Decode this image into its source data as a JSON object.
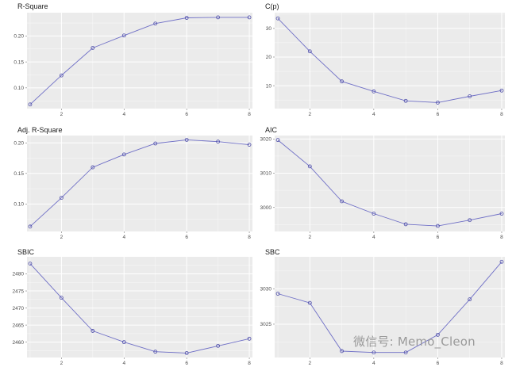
{
  "watermark": "微信号: Memo_Cleon",
  "colors": {
    "panel_bg": "#ebebeb",
    "grid": "#ffffff",
    "line": "#6f6fc6",
    "point": "#4a4aa6",
    "text": "#4d4d4d",
    "title": "#1a1a1a"
  },
  "chart_data": [
    {
      "type": "line",
      "title": "R-Square",
      "x": [
        1,
        2,
        3,
        4,
        5,
        6,
        7,
        8
      ],
      "values": [
        0.068,
        0.124,
        0.177,
        0.201,
        0.224,
        0.235,
        0.236,
        0.236
      ],
      "xlim": [
        0.9,
        8.1
      ],
      "ylim": [
        0.06,
        0.245
      ],
      "xticks": [
        2,
        4,
        6,
        8
      ],
      "yticks": [
        0.1,
        0.15,
        0.2
      ],
      "ytick_labels": [
        "0.10",
        "0.15",
        "0.20"
      ]
    },
    {
      "type": "line",
      "title": "C(p)",
      "x": [
        1,
        2,
        3,
        4,
        5,
        6,
        7,
        8
      ],
      "values": [
        33.5,
        22,
        11.5,
        8,
        4.7,
        4.1,
        6.3,
        8.3
      ],
      "xlim": [
        0.9,
        8.1
      ],
      "ylim": [
        2.0,
        35.5
      ],
      "xticks": [
        2,
        4,
        6,
        8
      ],
      "yticks": [
        10,
        20,
        30
      ],
      "ytick_labels": [
        "10",
        "20",
        "30"
      ]
    },
    {
      "type": "line",
      "title": "Adj. R-Square",
      "x": [
        1,
        2,
        3,
        4,
        5,
        6,
        7,
        8
      ],
      "values": [
        0.063,
        0.11,
        0.16,
        0.181,
        0.199,
        0.205,
        0.202,
        0.197
      ],
      "xlim": [
        0.9,
        8.1
      ],
      "ylim": [
        0.055,
        0.212
      ],
      "xticks": [
        2,
        4,
        6,
        8
      ],
      "yticks": [
        0.1,
        0.15,
        0.2
      ],
      "ytick_labels": [
        "0.10",
        "0.15",
        "0.20"
      ]
    },
    {
      "type": "line",
      "title": "AIC",
      "x": [
        1,
        2,
        3,
        4,
        5,
        6,
        7,
        8
      ],
      "values": [
        3019.7,
        3012,
        3001.8,
        2998.2,
        2995.1,
        2994.6,
        2996.3,
        2998.2
      ],
      "xlim": [
        0.9,
        8.1
      ],
      "ylim": [
        2993,
        3021
      ],
      "xticks": [
        2,
        4,
        6,
        8
      ],
      "yticks": [
        3000,
        3010,
        3020
      ],
      "ytick_labels": [
        "3000",
        "3010",
        "3020"
      ]
    },
    {
      "type": "line",
      "title": "SBIC",
      "x": [
        1,
        2,
        3,
        4,
        5,
        6,
        7,
        8
      ],
      "values": [
        2483,
        2473,
        2463.3,
        2460,
        2457.2,
        2456.8,
        2458.9,
        2461
      ],
      "xlim": [
        0.9,
        8.1
      ],
      "ylim": [
        2455.5,
        2485
      ],
      "xticks": [
        2,
        4,
        6,
        8
      ],
      "yticks": [
        2460,
        2465,
        2470,
        2475,
        2480
      ],
      "ytick_labels": [
        "2460",
        "2465",
        "2470",
        "2475",
        "2480"
      ]
    },
    {
      "type": "line",
      "title": "SBC",
      "x": [
        1,
        2,
        3,
        4,
        5,
        6,
        7,
        8
      ],
      "values": [
        3029.3,
        3028,
        3021.2,
        3021,
        3021,
        3023.5,
        3028.5,
        3033.8
      ],
      "xlim": [
        0.9,
        8.1
      ],
      "ylim": [
        3020.3,
        3034.5
      ],
      "xticks": [
        2,
        4,
        6,
        8
      ],
      "yticks": [
        3025,
        3030
      ],
      "ytick_labels": [
        "3025",
        "3030"
      ]
    }
  ]
}
